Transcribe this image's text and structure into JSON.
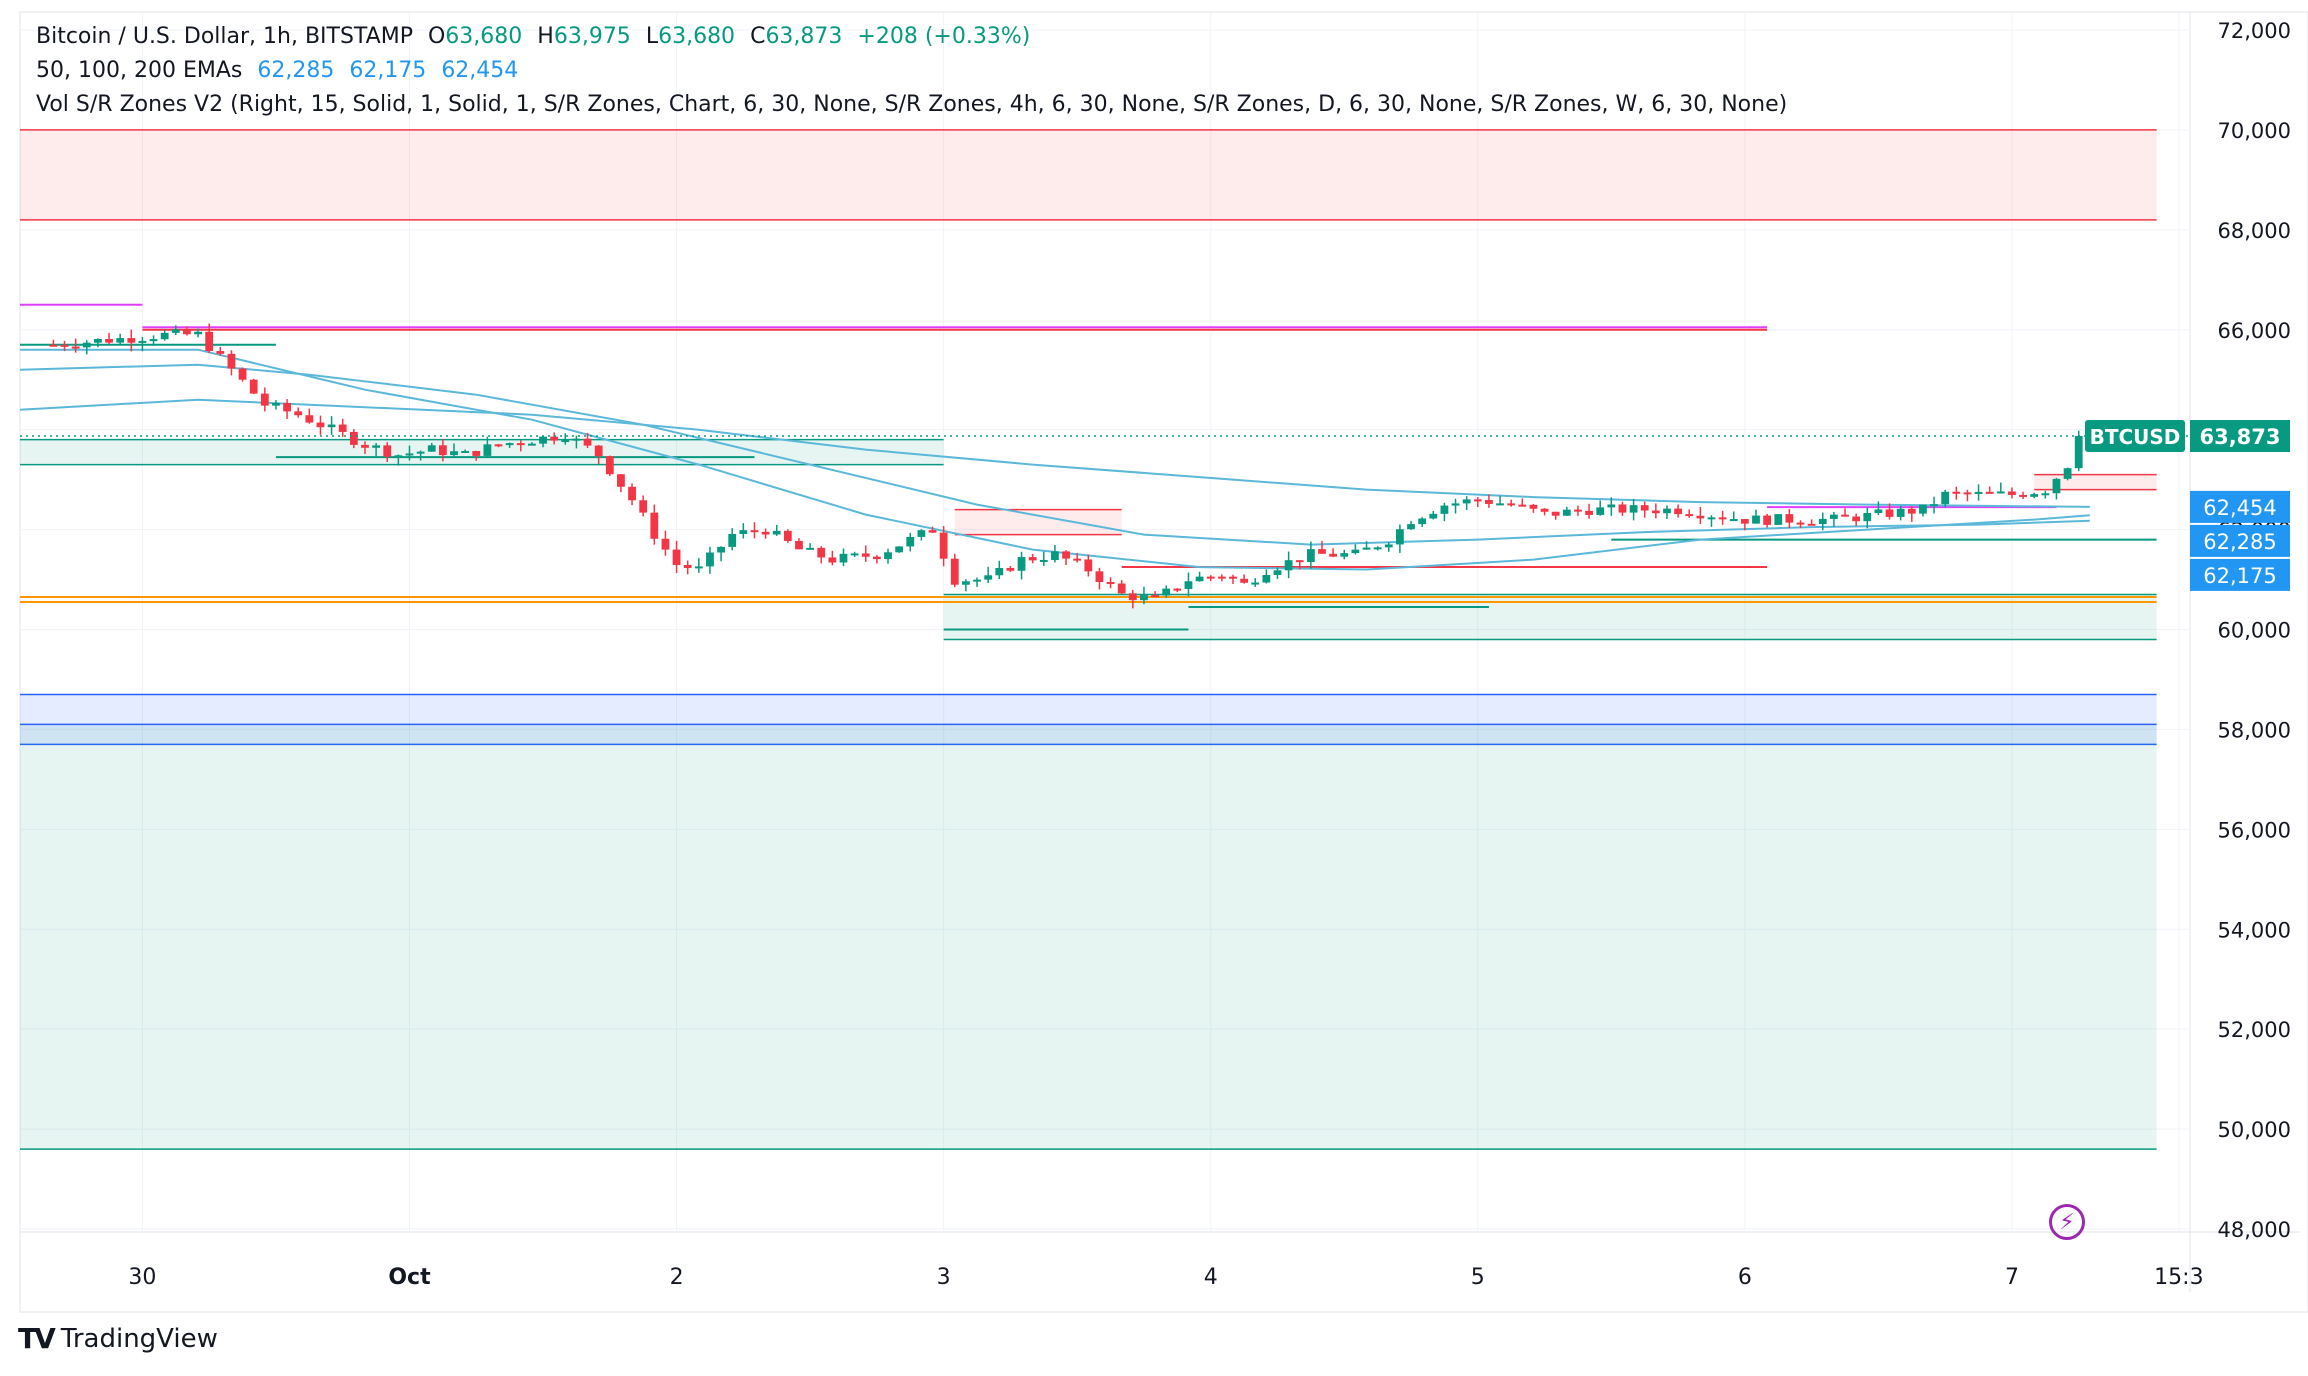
{
  "legend": {
    "symbol": "Bitcoin / U.S. Dollar, 1h, BITSTAMP",
    "open_label": "O",
    "open": "63,680",
    "high_label": "H",
    "high": "63,975",
    "low_label": "L",
    "low": "63,680",
    "close_label": "C",
    "close": "63,873",
    "change": "+208 (+0.33%)",
    "ema_label": "50, 100, 200 EMAs",
    "ema50": "62,285",
    "ema100": "62,175",
    "ema200": "62,454",
    "indicator": "Vol S/R Zones V2 (Right, 15, Solid, 1, Solid, 1, S/R Zones, Chart, 6, 30, None, S/R Zones, 4h, 6, 30, None, S/R Zones, D, 6, 30, None, S/R Zones, W, 6, 30, None)"
  },
  "brand": {
    "name": "TradingView",
    "logo": "TV"
  },
  "icons": {
    "bolt": "lightning-bolt-icon",
    "bolt_glyph": "⚡"
  },
  "colors": {
    "up": "#089981",
    "down": "#f23645",
    "ema": "#5bb8d9",
    "grid": "#f0f3fa"
  },
  "chart_data": {
    "type": "candlestick",
    "title": "Bitcoin / U.S. Dollar, 1h, BITSTAMP",
    "ylim": [
      47500,
      72500
    ],
    "y_ticks": [
      48000,
      50000,
      52000,
      54000,
      56000,
      58000,
      60000,
      62000,
      64000,
      66000,
      68000,
      70000,
      72000
    ],
    "y_tick_labels": [
      "48,000",
      "50,000",
      "52,000",
      "54,000",
      "56,000",
      "58,000",
      "60,000",
      "62,000",
      "64,000",
      "66,000",
      "68,000",
      "70,000",
      "72,000"
    ],
    "x_range_hours": [
      -11,
      184
    ],
    "x_ticks": [
      {
        "label": "30",
        "hour": 0
      },
      {
        "label": "Oct",
        "hour": 24
      },
      {
        "label": "2",
        "hour": 48
      },
      {
        "label": "3",
        "hour": 72
      },
      {
        "label": "4",
        "hour": 96
      },
      {
        "label": "5",
        "hour": 120
      },
      {
        "label": "6",
        "hour": 144
      },
      {
        "label": "7",
        "hour": 168
      },
      {
        "label": "15:3",
        "hour": 183
      }
    ],
    "candle_keypoints": [
      [
        -8,
        65700
      ],
      [
        -3,
        65800
      ],
      [
        2,
        65900
      ],
      [
        5,
        65900
      ],
      [
        8,
        65200
      ],
      [
        11,
        64500
      ],
      [
        14,
        64300
      ],
      [
        17,
        64000
      ],
      [
        20,
        63700
      ],
      [
        23,
        63500
      ],
      [
        26,
        63600
      ],
      [
        29,
        63500
      ],
      [
        32,
        63700
      ],
      [
        35,
        63800
      ],
      [
        38,
        63900
      ],
      [
        41,
        63500
      ],
      [
        44,
        62600
      ],
      [
        46,
        61900
      ],
      [
        48,
        61300
      ],
      [
        50,
        61200
      ],
      [
        53,
        61900
      ],
      [
        56,
        62000
      ],
      [
        59,
        61600
      ],
      [
        62,
        61400
      ],
      [
        66,
        61500
      ],
      [
        69,
        61800
      ],
      [
        71,
        62000
      ],
      [
        73,
        61000
      ],
      [
        76,
        61000
      ],
      [
        79,
        61400
      ],
      [
        82,
        61500
      ],
      [
        85,
        61200
      ],
      [
        88,
        60700
      ],
      [
        91,
        60600
      ],
      [
        94,
        61000
      ],
      [
        97,
        61100
      ],
      [
        99,
        60900
      ],
      [
        101,
        61200
      ],
      [
        105,
        61500
      ],
      [
        109,
        61500
      ],
      [
        112,
        61800
      ],
      [
        114,
        62200
      ],
      [
        117,
        62500
      ],
      [
        120,
        62600
      ],
      [
        123,
        62500
      ],
      [
        126,
        62300
      ],
      [
        130,
        62400
      ],
      [
        134,
        62400
      ],
      [
        138,
        62400
      ],
      [
        141,
        62300
      ],
      [
        144,
        62200
      ],
      [
        148,
        62200
      ],
      [
        152,
        62200
      ],
      [
        156,
        62300
      ],
      [
        160,
        62400
      ],
      [
        162,
        62700
      ],
      [
        165,
        62700
      ],
      [
        168,
        62700
      ],
      [
        171,
        62800
      ],
      [
        173,
        63300
      ],
      [
        174,
        63873
      ]
    ],
    "ema_series": [
      {
        "name": "EMA 50",
        "value": 62285,
        "points": [
          [
            -11,
            65600
          ],
          [
            5,
            65600
          ],
          [
            20,
            64800
          ],
          [
            35,
            64200
          ],
          [
            50,
            63300
          ],
          [
            65,
            62300
          ],
          [
            80,
            61600
          ],
          [
            95,
            61250
          ],
          [
            110,
            61200
          ],
          [
            125,
            61400
          ],
          [
            140,
            61800
          ],
          [
            155,
            62000
          ],
          [
            170,
            62200
          ],
          [
            175,
            62285
          ]
        ]
      },
      {
        "name": "EMA 100",
        "value": 62175,
        "points": [
          [
            -11,
            65200
          ],
          [
            5,
            65300
          ],
          [
            15,
            65100
          ],
          [
            30,
            64700
          ],
          [
            45,
            64100
          ],
          [
            60,
            63300
          ],
          [
            75,
            62500
          ],
          [
            90,
            61900
          ],
          [
            105,
            61700
          ],
          [
            120,
            61800
          ],
          [
            135,
            61950
          ],
          [
            150,
            62050
          ],
          [
            165,
            62100
          ],
          [
            175,
            62175
          ]
        ]
      },
      {
        "name": "EMA 200",
        "value": 62454,
        "points": [
          [
            -11,
            64400
          ],
          [
            5,
            64600
          ],
          [
            20,
            64450
          ],
          [
            35,
            64300
          ],
          [
            50,
            64000
          ],
          [
            65,
            63600
          ],
          [
            80,
            63300
          ],
          [
            95,
            63050
          ],
          [
            110,
            62800
          ],
          [
            125,
            62650
          ],
          [
            140,
            62550
          ],
          [
            155,
            62500
          ],
          [
            175,
            62454
          ]
        ]
      }
    ],
    "current_price": {
      "symbol": "BTCUSD",
      "value": 63873,
      "label": "63,873"
    },
    "price_labels": [
      {
        "name": "EMA 200",
        "value": 62454,
        "label": "62,454"
      },
      {
        "name": "EMA 50",
        "value": 62285,
        "label": "62,285"
      },
      {
        "name": "EMA 100",
        "value": 62175,
        "label": "62,175"
      }
    ],
    "zones": [
      {
        "kind": "resistance",
        "top": 70000,
        "bottom": 68200,
        "x0": -11,
        "x1": 181
      },
      {
        "kind": "support",
        "top": 58700,
        "bottom": 57700,
        "x0": -11,
        "x1": 181
      },
      {
        "kind": "support",
        "top": 58100,
        "bottom": 49600,
        "x0": -11,
        "x1": 181
      },
      {
        "kind": "support",
        "top": 60700,
        "bottom": 59800,
        "x0": 72,
        "x1": 181
      },
      {
        "kind": "support",
        "top": 63800,
        "bottom": 63300,
        "x0": -11,
        "x1": 72
      },
      {
        "kind": "resistance",
        "top": 62400,
        "bottom": 61900,
        "x0": 73,
        "x1": 88
      },
      {
        "kind": "resistance",
        "top": 63100,
        "bottom": 62800,
        "x0": 170,
        "x1": 181
      }
    ],
    "levels": [
      {
        "kind": "resistance",
        "price": 66000,
        "x0": 0,
        "x1": 146
      },
      {
        "kind": "weekly",
        "price": 66050,
        "x0": 0,
        "x1": 146
      },
      {
        "kind": "weekly",
        "price": 66500,
        "x0": -11,
        "x1": 0
      },
      {
        "kind": "support",
        "price": 65700,
        "x0": -11,
        "x1": 12
      },
      {
        "kind": "support",
        "price": 63450,
        "x0": 12,
        "x1": 55
      },
      {
        "kind": "orange",
        "price": 60650,
        "x0": -11,
        "x1": 181
      },
      {
        "kind": "orange",
        "price": 60550,
        "x0": -11,
        "x1": 181
      },
      {
        "kind": "support",
        "price": 60450,
        "x0": 94,
        "x1": 121
      },
      {
        "kind": "resistance",
        "price": 61250,
        "x0": 88,
        "x1": 146
      },
      {
        "kind": "support",
        "price": 61800,
        "x0": 132,
        "x1": 181
      },
      {
        "kind": "weekly",
        "price": 62450,
        "x0": 146,
        "x1": 172
      },
      {
        "kind": "support",
        "price": 60000,
        "x0": 72,
        "x1": 94
      }
    ]
  }
}
